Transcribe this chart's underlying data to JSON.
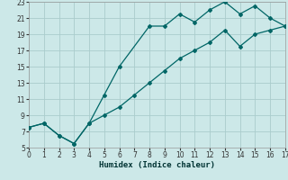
{
  "xlabel": "Humidex (Indice chaleur)",
  "bg_color": "#cce8e8",
  "grid_color": "#aacccc",
  "line_color": "#006666",
  "upper_x": [
    0,
    1,
    2,
    3,
    4,
    5,
    6,
    8,
    9,
    10,
    11,
    12,
    13,
    14,
    15,
    16,
    17
  ],
  "upper_y": [
    7.5,
    8.0,
    6.5,
    5.5,
    8.0,
    11.5,
    15.0,
    20.0,
    20.0,
    21.5,
    20.5,
    22.0,
    23.0,
    21.5,
    22.5,
    21.0,
    20.0
  ],
  "lower_x": [
    0,
    1,
    2,
    3,
    4,
    5,
    6,
    7,
    8,
    9,
    10,
    11,
    12,
    13,
    14,
    15,
    16,
    17
  ],
  "lower_y": [
    7.5,
    8.0,
    6.5,
    5.5,
    8.0,
    9.0,
    10.0,
    11.5,
    13.0,
    14.5,
    16.0,
    17.0,
    18.0,
    19.5,
    17.5,
    19.0,
    19.5,
    20.0
  ],
  "xlim": [
    0,
    17
  ],
  "ylim": [
    5,
    23
  ],
  "xticks": [
    0,
    1,
    2,
    3,
    4,
    5,
    6,
    7,
    8,
    9,
    10,
    11,
    12,
    13,
    14,
    15,
    16,
    17
  ],
  "yticks": [
    5,
    7,
    9,
    11,
    13,
    15,
    17,
    19,
    21,
    23
  ],
  "xlabel_fontsize": 6.5,
  "tick_fontsize": 5.5
}
